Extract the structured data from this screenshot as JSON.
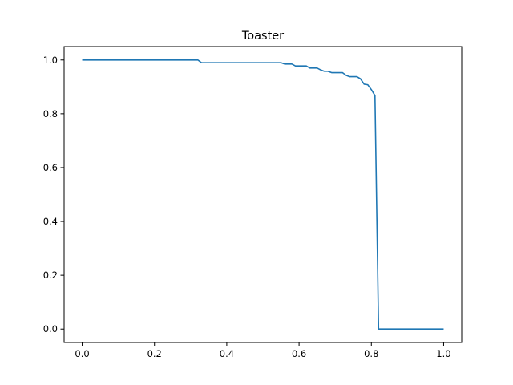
{
  "chart_data": {
    "type": "line",
    "title": "Toaster",
    "xlabel": "",
    "ylabel": "",
    "xlim": [
      -0.05,
      1.05
    ],
    "ylim": [
      -0.05,
      1.05
    ],
    "grid": false,
    "legend": "none",
    "x_ticks": [
      0.0,
      0.2,
      0.4,
      0.6,
      0.8,
      1.0
    ],
    "x_tick_labels": [
      "0.0",
      "0.2",
      "0.4",
      "0.6",
      "0.8",
      "1.0"
    ],
    "y_ticks": [
      0.0,
      0.2,
      0.4,
      0.6,
      0.8,
      1.0
    ],
    "y_tick_labels": [
      "0.0",
      "0.2",
      "0.4",
      "0.6",
      "0.8",
      "1.0"
    ],
    "series": [
      {
        "color": "#1f77b4",
        "x": [
          0.0,
          0.32,
          0.33,
          0.55,
          0.56,
          0.58,
          0.59,
          0.62,
          0.63,
          0.65,
          0.66,
          0.67,
          0.68,
          0.69,
          0.72,
          0.73,
          0.74,
          0.76,
          0.77,
          0.78,
          0.79,
          0.8,
          0.81,
          0.82,
          1.0
        ],
        "y": [
          1.0,
          1.0,
          0.99,
          0.99,
          0.985,
          0.985,
          0.978,
          0.978,
          0.97,
          0.97,
          0.963,
          0.958,
          0.958,
          0.953,
          0.953,
          0.943,
          0.938,
          0.938,
          0.93,
          0.91,
          0.908,
          0.89,
          0.868,
          0.0,
          0.0
        ]
      }
    ]
  }
}
